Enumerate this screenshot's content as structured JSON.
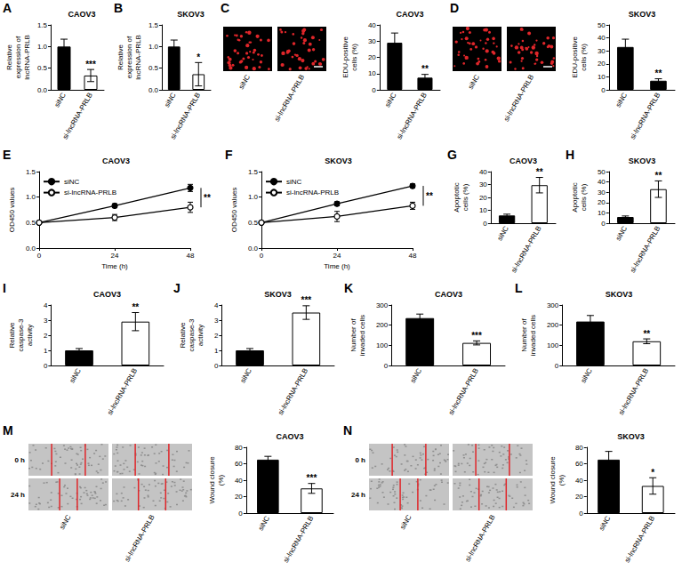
{
  "chart_data": [
    {
      "panel_label": "A",
      "type": "bar",
      "title": "CAOV3",
      "y_label": "Relative expression of lncRNA-PRLB",
      "categories": [
        "siNC",
        "si-lncRNA-PRLB"
      ],
      "values": [
        1.0,
        0.33
      ],
      "errors": [
        0.17,
        0.14
      ],
      "colors": [
        "#000000",
        "#ffffff"
      ],
      "ylim": [
        0,
        1.5
      ],
      "yticks": [
        {
          "value": 0,
          "label": "0.0"
        },
        {
          "value": 0.5,
          "label": "0.5"
        },
        {
          "value": 1,
          "label": "1.0"
        },
        {
          "value": 1.5,
          "label": "1.5"
        }
      ],
      "annotations": [
        "***"
      ]
    },
    {
      "panel_label": "B",
      "type": "bar",
      "title": "SKOV3",
      "y_label": "Relative expression of lncRNA-PRLB",
      "categories": [
        "siNC",
        "si-lncRNA-PRLB"
      ],
      "values": [
        1.0,
        0.36
      ],
      "errors": [
        0.15,
        0.27
      ],
      "colors": [
        "#000000",
        "#ffffff"
      ],
      "ylim": [
        0,
        1.5
      ],
      "yticks": [
        {
          "value": 0,
          "label": "0.0"
        },
        {
          "value": 0.5,
          "label": "0.5"
        },
        {
          "value": 1,
          "label": "1.0"
        },
        {
          "value": 1.5,
          "label": "1.5"
        }
      ],
      "annotations": [
        "*"
      ]
    },
    {
      "panel_label": "C",
      "type": "bar",
      "title": "CAOV3",
      "y_label": "EDU-positive cells (%)",
      "images": {
        "columns": [
          "siNC",
          "si-lncRNA-PRLB"
        ]
      },
      "categories": [
        "siNC",
        "si-lncRNA-PRLB"
      ],
      "values": [
        29,
        7.5
      ],
      "errors": [
        6,
        2
      ],
      "colors": [
        "#000000",
        "#000000"
      ],
      "ylim": [
        0,
        40
      ],
      "yticks": [
        0,
        10,
        20,
        30,
        40
      ],
      "annotations": [
        "**"
      ]
    },
    {
      "panel_label": "D",
      "type": "bar",
      "title": "SKOV3",
      "y_label": "EDU-positive cells (%)",
      "images": {
        "columns": [
          "siNC",
          "si-lncRNA-PRLB"
        ]
      },
      "categories": [
        "siNC",
        "si-lncRNA-PRLB"
      ],
      "values": [
        33,
        7
      ],
      "errors": [
        6,
        1.5
      ],
      "colors": [
        "#000000",
        "#000000"
      ],
      "ylim": [
        0,
        50
      ],
      "yticks": [
        0,
        10,
        20,
        30,
        40,
        50
      ],
      "annotations": [
        "**"
      ]
    },
    {
      "panel_label": "E",
      "type": "line",
      "title": "CAOV3",
      "x_label": "Time (h)",
      "y_label": "OD450 values",
      "x": [
        0,
        24,
        48
      ],
      "xlim": [
        0,
        48
      ],
      "xticks": [
        0,
        24,
        48
      ],
      "ylim": [
        0,
        1.5
      ],
      "yticks": [
        {
          "value": 0,
          "label": "0.0"
        },
        {
          "value": 0.5,
          "label": "0.5"
        },
        {
          "value": 1,
          "label": "1.0"
        },
        {
          "value": 1.5,
          "label": "1.5"
        }
      ],
      "series": [
        {
          "name": "siNC",
          "color": "#000000",
          "marker": "filled circle",
          "values": [
            0.5,
            0.83,
            1.18
          ],
          "errors": [
            0.02,
            0.04,
            0.07
          ]
        },
        {
          "name": "si-lncRNA-PRLB",
          "color": "#000000",
          "marker": "open circle",
          "values": [
            0.5,
            0.6,
            0.8
          ],
          "errors": [
            0.02,
            0.06,
            0.1
          ]
        }
      ],
      "legend": "upper left",
      "annotations": [
        "**"
      ]
    },
    {
      "panel_label": "F",
      "type": "line",
      "title": "SKOV3",
      "x_label": "Time (h)",
      "y_label": "OD450 values",
      "x": [
        0,
        24,
        48
      ],
      "xlim": [
        0,
        48
      ],
      "xticks": [
        0,
        24,
        48
      ],
      "ylim": [
        0,
        1.5
      ],
      "yticks": [
        {
          "value": 0,
          "label": "0.0"
        },
        {
          "value": 0.5,
          "label": "0.5"
        },
        {
          "value": 1,
          "label": "1.0"
        },
        {
          "value": 1.5,
          "label": "1.5"
        }
      ],
      "series": [
        {
          "name": "siNC",
          "color": "#000000",
          "marker": "filled circle",
          "values": [
            0.5,
            0.87,
            1.22
          ],
          "errors": [
            0.02,
            0.04,
            0.04
          ]
        },
        {
          "name": "si-lncRNA-PRLB",
          "color": "#000000",
          "marker": "open circle",
          "values": [
            0.5,
            0.62,
            0.83
          ],
          "errors": [
            0.02,
            0.1,
            0.07
          ]
        }
      ],
      "legend": "upper left",
      "annotations": [
        "**"
      ]
    },
    {
      "panel_label": "G",
      "type": "bar",
      "title": "CAOV3",
      "y_label": "Apoptotic cells (%)",
      "categories": [
        "siNC",
        "si-lncRNA-PRLB"
      ],
      "values": [
        6,
        29.5
      ],
      "errors": [
        1,
        6
      ],
      "colors": [
        "#000000",
        "#ffffff"
      ],
      "ylim": [
        0,
        40
      ],
      "yticks": [
        0,
        10,
        20,
        30,
        40
      ],
      "annotations": [
        "**"
      ]
    },
    {
      "panel_label": "H",
      "type": "bar",
      "title": "SKOV3",
      "y_label": "Apoptotic cells (%)",
      "categories": [
        "siNC",
        "si-lncRNA-PRLB"
      ],
      "values": [
        6,
        33
      ],
      "errors": [
        1,
        8
      ],
      "colors": [
        "#000000",
        "#ffffff"
      ],
      "ylim": [
        0,
        50
      ],
      "yticks": [
        0,
        10,
        20,
        30,
        40,
        50
      ],
      "annotations": [
        "**"
      ]
    },
    {
      "panel_label": "I",
      "type": "bar",
      "title": "CAOV3",
      "y_label": "Relative caspase-3 activity",
      "categories": [
        "siNC",
        "si-lncRNA-PRLB"
      ],
      "values": [
        1.0,
        2.9
      ],
      "errors": [
        0.12,
        0.6
      ],
      "colors": [
        "#000000",
        "#ffffff"
      ],
      "ylim": [
        0,
        4
      ],
      "yticks": [
        0,
        1,
        2,
        3,
        4
      ],
      "annotations": [
        "**"
      ]
    },
    {
      "panel_label": "J",
      "type": "bar",
      "title": "SKOV3",
      "y_label": "Relative caspase-3 activity",
      "categories": [
        "siNC",
        "si-lncRNA-PRLB"
      ],
      "values": [
        1.0,
        3.5
      ],
      "errors": [
        0.12,
        0.45
      ],
      "colors": [
        "#000000",
        "#ffffff"
      ],
      "ylim": [
        0,
        4
      ],
      "yticks": [
        0,
        1,
        2,
        3,
        4
      ],
      "annotations": [
        "***"
      ]
    },
    {
      "panel_label": "K",
      "type": "bar",
      "title": "CAOV3",
      "y_label": "Number of invaded cells",
      "categories": [
        "siNC",
        "si-lncRNA-PRLB"
      ],
      "values": [
        235,
        112
      ],
      "errors": [
        20,
        10
      ],
      "colors": [
        "#000000",
        "#ffffff"
      ],
      "ylim": [
        0,
        300
      ],
      "yticks": [
        0,
        100,
        200,
        300
      ],
      "annotations": [
        "***"
      ]
    },
    {
      "panel_label": "L",
      "type": "bar",
      "title": "SKOV3",
      "y_label": "Number of invaded cells",
      "categories": [
        "siNC",
        "si-lncRNA-PRLB"
      ],
      "values": [
        218,
        120
      ],
      "errors": [
        30,
        12
      ],
      "colors": [
        "#000000",
        "#ffffff"
      ],
      "ylim": [
        0,
        300
      ],
      "yticks": [
        0,
        100,
        200,
        300
      ],
      "annotations": [
        "**"
      ]
    },
    {
      "panel_label": "M",
      "type": "bar",
      "title": "CAOV3",
      "y_label": "Wound closure (%)",
      "images": {
        "columns": [
          "siNC",
          "si-lncRNA-PRLB"
        ],
        "rows": [
          "0 h",
          "24 h"
        ]
      },
      "categories": [
        "siNC",
        "si-lncRNA-PRLB"
      ],
      "values": [
        65,
        30
      ],
      "errors": [
        4,
        6
      ],
      "colors": [
        "#000000",
        "#ffffff"
      ],
      "ylim": [
        0,
        80
      ],
      "yticks": [
        0,
        20,
        40,
        60,
        80
      ],
      "annotations": [
        "***"
      ]
    },
    {
      "panel_label": "N",
      "type": "bar",
      "title": "SKOV3",
      "y_label": "Wound closure (%)",
      "images": {
        "columns": [
          "siNC",
          "si-lncRNA-PRLB"
        ],
        "rows": [
          "0 h",
          "24 h"
        ]
      },
      "categories": [
        "siNC",
        "si-lncRNA-PRLB"
      ],
      "values": [
        65,
        33
      ],
      "errors": [
        10,
        10
      ],
      "colors": [
        "#000000",
        "#ffffff"
      ],
      "ylim": [
        0,
        80
      ],
      "yticks": [
        0,
        20,
        40,
        60,
        80
      ],
      "annotations": [
        "*"
      ]
    }
  ]
}
